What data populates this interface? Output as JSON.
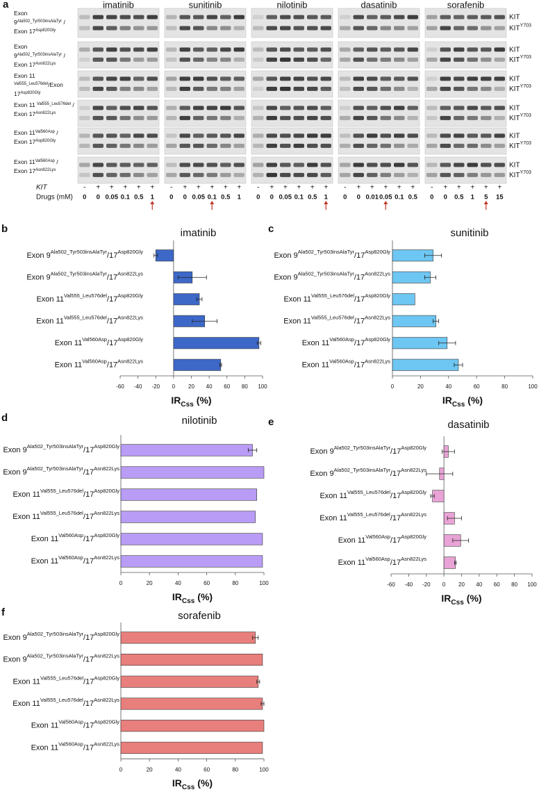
{
  "blot": {
    "panel": "a",
    "drugs": [
      {
        "name": "imatinib",
        "kit": [
          "-",
          "+",
          "+",
          "+",
          "+",
          "+"
        ],
        "doses": [
          0,
          0,
          0.05,
          0.1,
          0.5,
          1
        ]
      },
      {
        "name": "sunitinib",
        "kit": [
          "-",
          "+",
          "+",
          "+",
          "+",
          "+"
        ],
        "doses": [
          0,
          0,
          0.05,
          0.1,
          0.5,
          1
        ]
      },
      {
        "name": "nilotinib",
        "kit": [
          "-",
          "+",
          "+",
          "+",
          "+",
          "+"
        ],
        "doses": [
          0,
          0,
          0.05,
          0.1,
          0.5,
          1
        ]
      },
      {
        "name": "dasatinib",
        "kit": [
          "-",
          "+",
          "+",
          "+",
          "+",
          "+"
        ],
        "doses": [
          0,
          0,
          0.01,
          0.05,
          0.1,
          0.5
        ]
      },
      {
        "name": "sorafenib",
        "kit": [
          "-",
          "+",
          "+",
          "+",
          "+",
          "+"
        ],
        "doses": [
          0,
          0,
          0.5,
          1,
          5,
          15
        ]
      }
    ],
    "rows": [
      [
        [
          {
            "text": "Exon"
          }
        ],
        [
          {
            "text": "9"
          },
          {
            "text": "Ala502_Tyr503insAlaTyr",
            "sup": true
          },
          {
            "text": " /"
          }
        ],
        [
          {
            "text": "Exon 17"
          },
          {
            "text": "Asp820Gly",
            "sup": true
          }
        ]
      ],
      [
        [
          {
            "text": "Exon"
          }
        ],
        [
          {
            "text": "9"
          },
          {
            "text": "Ala502_Tyr503insAlaTyr",
            "sup": true
          },
          {
            "text": " /"
          }
        ],
        [
          {
            "text": "Exon 17"
          },
          {
            "text": "Asn822Lys",
            "sup": true
          }
        ]
      ],
      [
        [
          {
            "text": "Exon 11"
          }
        ],
        [
          {
            "text": "Val555_Leu576del",
            "sup": true
          },
          {
            "text": "/Exon"
          }
        ],
        [
          {
            "text": "17"
          },
          {
            "text": "Asp820Gly",
            "sup": true
          }
        ]
      ],
      [
        [
          {
            "text": "Exon 11 "
          },
          {
            "text": "Val555_Leu576del",
            "sup": true
          },
          {
            "text": " /"
          }
        ],
        [
          {
            "text": "Exon 17"
          },
          {
            "text": "Asn822Lys",
            "sup": true
          }
        ]
      ],
      [
        [
          {
            "text": "Exon 11"
          },
          {
            "text": "Val560Asp",
            "sup": true
          },
          {
            "text": " /"
          }
        ],
        [
          {
            "text": "Exon 17"
          },
          {
            "text": "Asp820Gly",
            "sup": true
          }
        ]
      ],
      [
        [
          {
            "text": "Exon 11"
          },
          {
            "text": "Val560Asp",
            "sup": true
          },
          {
            "text": " /"
          }
        ],
        [
          {
            "text": "Exon 17"
          },
          {
            "text": "Asn822Lys",
            "sup": true
          }
        ]
      ]
    ],
    "band_labels": [
      [
        {
          "text": "KIT"
        }
      ],
      [
        {
          "text": "KIT"
        },
        {
          "text": "Y703",
          "sup": true
        }
      ]
    ],
    "kit_label": "KIT",
    "dose_label": "Drugs (mM)"
  },
  "chart_data": [
    {
      "panel": "b",
      "type": "bar",
      "orientation": "horizontal",
      "title": "imatinib",
      "categories": [
        [
          "Exon 9",
          "Ala502_Tyr503insAlaTyr",
          "/17",
          "Asp820Gly"
        ],
        [
          "Exon 9",
          "Ala502_Tyr503insAlaTyr",
          "/17",
          "Asn822Lys"
        ],
        [
          "Exon 11",
          "Val555_Leu576del",
          "/17",
          "Asp820Gly"
        ],
        [
          "Exon 11",
          "Val555_Leu576del",
          "/17",
          "Asn822Lys"
        ],
        [
          "Exon 11",
          "Val560Asp",
          "/17",
          "Asp820Gly"
        ],
        [
          "Exon 11",
          "Val560Asp",
          "/17",
          "Asn822Lys"
        ]
      ],
      "values": [
        -20,
        21,
        29,
        35,
        96,
        53
      ],
      "errors": [
        2,
        16,
        3,
        14,
        2,
        1
      ],
      "color": "#3d68c8",
      "xlim": [
        -60,
        100
      ],
      "xticks": [
        -60,
        -40,
        -20,
        0,
        20,
        40,
        60,
        80,
        100
      ],
      "xlabel": {
        "text": "IR",
        "sub": "Css",
        "unit": "(%)"
      }
    },
    {
      "panel": "c",
      "type": "bar",
      "orientation": "horizontal",
      "title": "sunitinib",
      "categories": [
        [
          "Exon 9",
          "Ala502_Tyr503insAlaTyr",
          "/17",
          "Asp820Gly"
        ],
        [
          "Exon 9",
          "Ala502_Tyr503insAlaTyr",
          "/17",
          "Asn822Lys"
        ],
        [
          "Exon 11",
          "Val555_Leu576del",
          "/17",
          "Asp820Gly"
        ],
        [
          "Exon 11",
          "Val555_Leu576del",
          "/17",
          "Asn822Lys"
        ],
        [
          "Exon 11",
          "Val560Asp",
          "/17",
          "Asp820Gly"
        ],
        [
          "Exon 11",
          "Val560Asp",
          "/17",
          "Asn822Lys"
        ]
      ],
      "values": [
        29,
        27,
        16,
        31,
        39,
        47
      ],
      "errors": [
        6,
        4,
        null,
        2,
        6,
        3
      ],
      "color": "#6ec6f2",
      "xlim": [
        0,
        100
      ],
      "xticks": [
        0,
        20,
        40,
        60,
        80,
        100
      ],
      "xlabel": {
        "text": "IR",
        "sub": "Css",
        "unit": "(%)"
      }
    },
    {
      "panel": "d",
      "type": "bar",
      "orientation": "horizontal",
      "title": "nilotinib",
      "categories": [
        [
          "Exon 9",
          "Ala502_Tyr503insAlaTyr",
          "/17",
          "Asp820Gly"
        ],
        [
          "Exon 9",
          "Ala502_Tyr503insAlaTyr",
          "/17",
          "Asn822Lys"
        ],
        [
          "Exon 11",
          "Val555_Leu576del",
          "/17",
          "Asp820Gly"
        ],
        [
          "Exon 11",
          "Val555_Leu576del",
          "/17",
          "Asn822Lys"
        ],
        [
          "Exon 11",
          "Val560Asp",
          "/17",
          "Asp820Gly"
        ],
        [
          "Exon 11",
          "Val560Asp",
          "/17",
          "Asn822Lys"
        ]
      ],
      "values": [
        92,
        100,
        95,
        94,
        99,
        99
      ],
      "errors": [
        3,
        null,
        null,
        null,
        null,
        null
      ],
      "color": "#b99cf5",
      "xlim": [
        0,
        100
      ],
      "xticks": [
        0,
        20,
        40,
        60,
        80,
        100
      ],
      "xlabel": {
        "text": "IR",
        "sub": "Css",
        "unit": "(%)"
      }
    },
    {
      "panel": "e",
      "type": "bar",
      "orientation": "horizontal",
      "title": "dasatinib",
      "categories": [
        [
          "Exon 9",
          "Ala502_Tyr503insAlaTyr",
          "/17",
          "Asp820Gly"
        ],
        [
          "Exon 9",
          "Ala502_Tyr503insAlaTyr",
          "/17",
          "Asn822Lys"
        ],
        [
          "Exon 11",
          "Val555_Leu576del",
          "/17",
          "Asp820Gly"
        ],
        [
          "Exon 11",
          "Val555_Leu576del",
          "/17",
          "Asn822Lys"
        ],
        [
          "Exon 11",
          "Val560Asp",
          "/17",
          "Asp820Gly"
        ],
        [
          "Exon 11",
          "Val560Asp",
          "/17",
          "Asn822Lys"
        ]
      ],
      "values": [
        5,
        -5,
        -13,
        12,
        19,
        13
      ],
      "errors": [
        7,
        15,
        2,
        8,
        9,
        1
      ],
      "color": "#e9a3d6",
      "xlim": [
        -60,
        100
      ],
      "xticks": [
        -60,
        -40,
        -20,
        0,
        20,
        40,
        60,
        80,
        100
      ],
      "xlabel": {
        "text": "IR",
        "sub": "Css",
        "unit": "(%)"
      }
    },
    {
      "panel": "f",
      "type": "bar",
      "orientation": "horizontal",
      "title": "sorafenib",
      "categories": [
        [
          "Exon 9",
          "Ala502_Tyr503insAlaTyr",
          "/17",
          "Asp820Gly"
        ],
        [
          "Exon 9",
          "Ala502_Tyr503insAlaTyr",
          "/17",
          "Asn822Lys"
        ],
        [
          "Exon 11",
          "Val555_Leu576del",
          "/17",
          "Asp820Gly"
        ],
        [
          "Exon 11",
          "Val555_Leu576del",
          "/17",
          "Asn822Lys"
        ],
        [
          "Exon 11",
          "Val560Asp",
          "/17",
          "Asp820Gly"
        ],
        [
          "Exon 11",
          "Val560Asp",
          "/17",
          "Asn822Lys"
        ]
      ],
      "values": [
        94,
        99,
        96,
        99,
        100,
        99
      ],
      "errors": [
        2,
        null,
        1,
        1,
        null,
        null
      ],
      "color": "#e87f7c",
      "xlim": [
        0,
        100
      ],
      "xticks": [
        0,
        20,
        40,
        60,
        80,
        100
      ],
      "xlabel": {
        "text": "IR",
        "sub": "Css",
        "unit": "(%)"
      }
    }
  ]
}
